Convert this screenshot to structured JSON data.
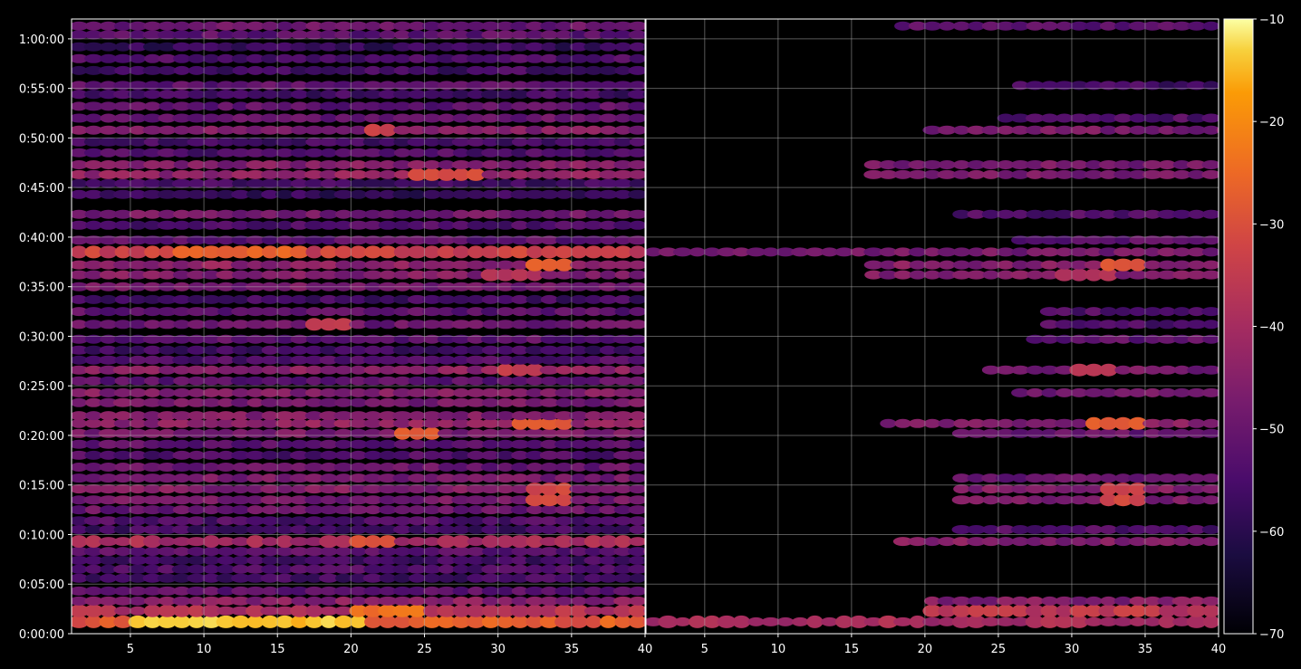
{
  "chart_data": [
    {
      "type": "heatmap",
      "panel": "left",
      "title": "",
      "xlabel": "",
      "ylabel": "",
      "xlim": [
        1,
        40
      ],
      "ylim": [
        0,
        62
      ],
      "x_tick_values": [
        5,
        10,
        15,
        20,
        25,
        30,
        35,
        40
      ],
      "x_tick_labels": [
        "5",
        "10",
        "15",
        "20",
        "25",
        "30",
        "35",
        "40"
      ],
      "y_tick_values": [
        0,
        5,
        10,
        15,
        20,
        25,
        30,
        35,
        40,
        45,
        50,
        55,
        60
      ],
      "y_tick_labels": [
        "0:00:00",
        "0:05:00",
        "0:10:00",
        "0:15:00",
        "0:20:00",
        "0:25:00",
        "0:30:00",
        "0:35:00",
        "0:40:00",
        "0:45:00",
        "0:50:00",
        "0:55:00",
        "1:00:00"
      ],
      "grid": true,
      "bands": [
        {
          "t": 1.2,
          "level": -28,
          "hot_x": [
            5,
            20
          ],
          "hot_level": -14
        },
        {
          "t": 2.3,
          "level": -38,
          "hot_x": [
            20,
            24
          ],
          "hot_level": -24
        },
        {
          "t": 3.3,
          "level": -45
        },
        {
          "t": 4.3,
          "level": -52
        },
        {
          "t": 5.6,
          "level": -56
        },
        {
          "t": 6.5,
          "level": -54
        },
        {
          "t": 7.4,
          "level": -56
        },
        {
          "t": 8.3,
          "level": -52
        },
        {
          "t": 9.3,
          "level": -40,
          "hot_x": [
            20,
            22
          ],
          "hot_level": -28
        },
        {
          "t": 10.5,
          "level": -56
        },
        {
          "t": 11.4,
          "level": -54
        },
        {
          "t": 12.5,
          "level": -50
        },
        {
          "t": 13.5,
          "level": -48,
          "hot_x": [
            32,
            34
          ],
          "hot_level": -32
        },
        {
          "t": 14.6,
          "level": -46,
          "hot_x": [
            32,
            34
          ],
          "hot_level": -32
        },
        {
          "t": 15.7,
          "level": -48
        },
        {
          "t": 16.8,
          "level": -50
        },
        {
          "t": 18.0,
          "level": -54
        },
        {
          "t": 19.1,
          "level": -52
        },
        {
          "t": 20.2,
          "level": -48,
          "hot_x": [
            23,
            25
          ],
          "hot_level": -28
        },
        {
          "t": 21.2,
          "level": -44,
          "hot_x": [
            31,
            34
          ],
          "hot_level": -28
        },
        {
          "t": 22.0,
          "level": -46
        },
        {
          "t": 23.3,
          "level": -48
        },
        {
          "t": 24.3,
          "level": -46
        },
        {
          "t": 25.5,
          "level": -52
        },
        {
          "t": 26.6,
          "level": -44,
          "hot_x": [
            30,
            32
          ],
          "hot_level": -34
        },
        {
          "t": 27.6,
          "level": -54
        },
        {
          "t": 28.6,
          "level": -56
        },
        {
          "t": 29.7,
          "level": -52
        },
        {
          "t": 31.2,
          "level": -50,
          "hot_x": [
            17,
            19
          ],
          "hot_level": -36
        },
        {
          "t": 32.5,
          "level": -52
        },
        {
          "t": 33.7,
          "level": -56
        },
        {
          "t": 35.0,
          "level": -48
        },
        {
          "t": 36.2,
          "level": -46,
          "hot_x": [
            29,
            32
          ],
          "hot_level": -38
        },
        {
          "t": 37.2,
          "level": -44,
          "hot_x": [
            32,
            34
          ],
          "hot_level": -28
        },
        {
          "t": 38.5,
          "level": -34,
          "hot_x": [
            8,
            16
          ],
          "hot_level": -26
        },
        {
          "t": 39.7,
          "level": -52
        },
        {
          "t": 41.2,
          "level": -54
        },
        {
          "t": 42.3,
          "level": -48
        },
        {
          "t": 44.3,
          "level": -58
        },
        {
          "t": 45.4,
          "level": -56
        },
        {
          "t": 46.3,
          "level": -44,
          "hot_x": [
            24,
            28
          ],
          "hot_level": -30
        },
        {
          "t": 47.3,
          "level": -46
        },
        {
          "t": 48.5,
          "level": -54
        },
        {
          "t": 49.6,
          "level": -56
        },
        {
          "t": 50.8,
          "level": -46,
          "hot_x": [
            21,
            22
          ],
          "hot_level": -34
        },
        {
          "t": 52.0,
          "level": -50
        },
        {
          "t": 53.2,
          "level": -52
        },
        {
          "t": 54.4,
          "level": -56
        },
        {
          "t": 55.3,
          "level": -52
        },
        {
          "t": 56.8,
          "level": -56
        },
        {
          "t": 58.0,
          "level": -54
        },
        {
          "t": 59.2,
          "level": -58
        },
        {
          "t": 60.4,
          "level": -52
        },
        {
          "t": 61.3,
          "level": -50
        }
      ]
    },
    {
      "type": "heatmap",
      "panel": "right",
      "title": "",
      "xlabel": "",
      "ylabel": "",
      "xlim": [
        1,
        40
      ],
      "ylim": [
        0,
        62
      ],
      "x_tick_values": [
        5,
        10,
        15,
        20,
        25,
        30,
        35,
        40
      ],
      "x_tick_labels": [
        "5",
        "10",
        "15",
        "20",
        "25",
        "30",
        "35",
        "40"
      ],
      "grid": true,
      "bands": [
        {
          "t": 1.2,
          "level": -40,
          "from_x": 1
        },
        {
          "t": 2.3,
          "level": -36,
          "from_x": 20
        },
        {
          "t": 3.3,
          "level": -46,
          "from_x": 20
        },
        {
          "t": 9.3,
          "level": -46,
          "from_x": 18
        },
        {
          "t": 10.5,
          "level": -54,
          "from_x": 22
        },
        {
          "t": 13.5,
          "level": -48,
          "from_x": 22,
          "hot_x": [
            32,
            34
          ],
          "hot_level": -32
        },
        {
          "t": 14.6,
          "level": -46,
          "from_x": 22,
          "hot_x": [
            32,
            34
          ],
          "hot_level": -32
        },
        {
          "t": 15.7,
          "level": -50,
          "from_x": 22
        },
        {
          "t": 20.2,
          "level": -50,
          "from_x": 22
        },
        {
          "t": 21.2,
          "level": -46,
          "from_x": 17,
          "hot_x": [
            31,
            34
          ],
          "hot_level": -28
        },
        {
          "t": 24.3,
          "level": -48,
          "from_x": 26
        },
        {
          "t": 26.6,
          "level": -48,
          "from_x": 24,
          "hot_x": [
            30,
            32
          ],
          "hot_level": -36
        },
        {
          "t": 29.7,
          "level": -52,
          "from_x": 27
        },
        {
          "t": 31.2,
          "level": -54,
          "from_x": 28
        },
        {
          "t": 32.5,
          "level": -54,
          "from_x": 28
        },
        {
          "t": 36.2,
          "level": -46,
          "from_x": 16,
          "hot_x": [
            29,
            32
          ],
          "hot_level": -38
        },
        {
          "t": 37.2,
          "level": -46,
          "from_x": 16,
          "hot_x": [
            32,
            34
          ],
          "hot_level": -30
        },
        {
          "t": 38.5,
          "level": -48,
          "from_x": 1
        },
        {
          "t": 39.7,
          "level": -52,
          "from_x": 26
        },
        {
          "t": 42.3,
          "level": -54,
          "from_x": 22
        },
        {
          "t": 46.3,
          "level": -48,
          "from_x": 16
        },
        {
          "t": 47.3,
          "level": -48,
          "from_x": 16
        },
        {
          "t": 50.8,
          "level": -48,
          "from_x": 20
        },
        {
          "t": 52.0,
          "level": -54,
          "from_x": 25
        },
        {
          "t": 55.3,
          "level": -56,
          "from_x": 26
        },
        {
          "t": 61.3,
          "level": -52,
          "from_x": 18
        }
      ]
    }
  ],
  "colorbar": {
    "colormap": "inferno",
    "range": [
      -70,
      -10
    ],
    "tick_values": [
      -70,
      -60,
      -50,
      -40,
      -30,
      -20,
      -10
    ],
    "tick_labels": [
      "−70",
      "−60",
      "−50",
      "−40",
      "−30",
      "−20",
      "−10"
    ]
  },
  "colors": {
    "background": "#000000",
    "axes_border": "#ffffff",
    "grid": "#b0b0b0",
    "text": "#ffffff"
  }
}
